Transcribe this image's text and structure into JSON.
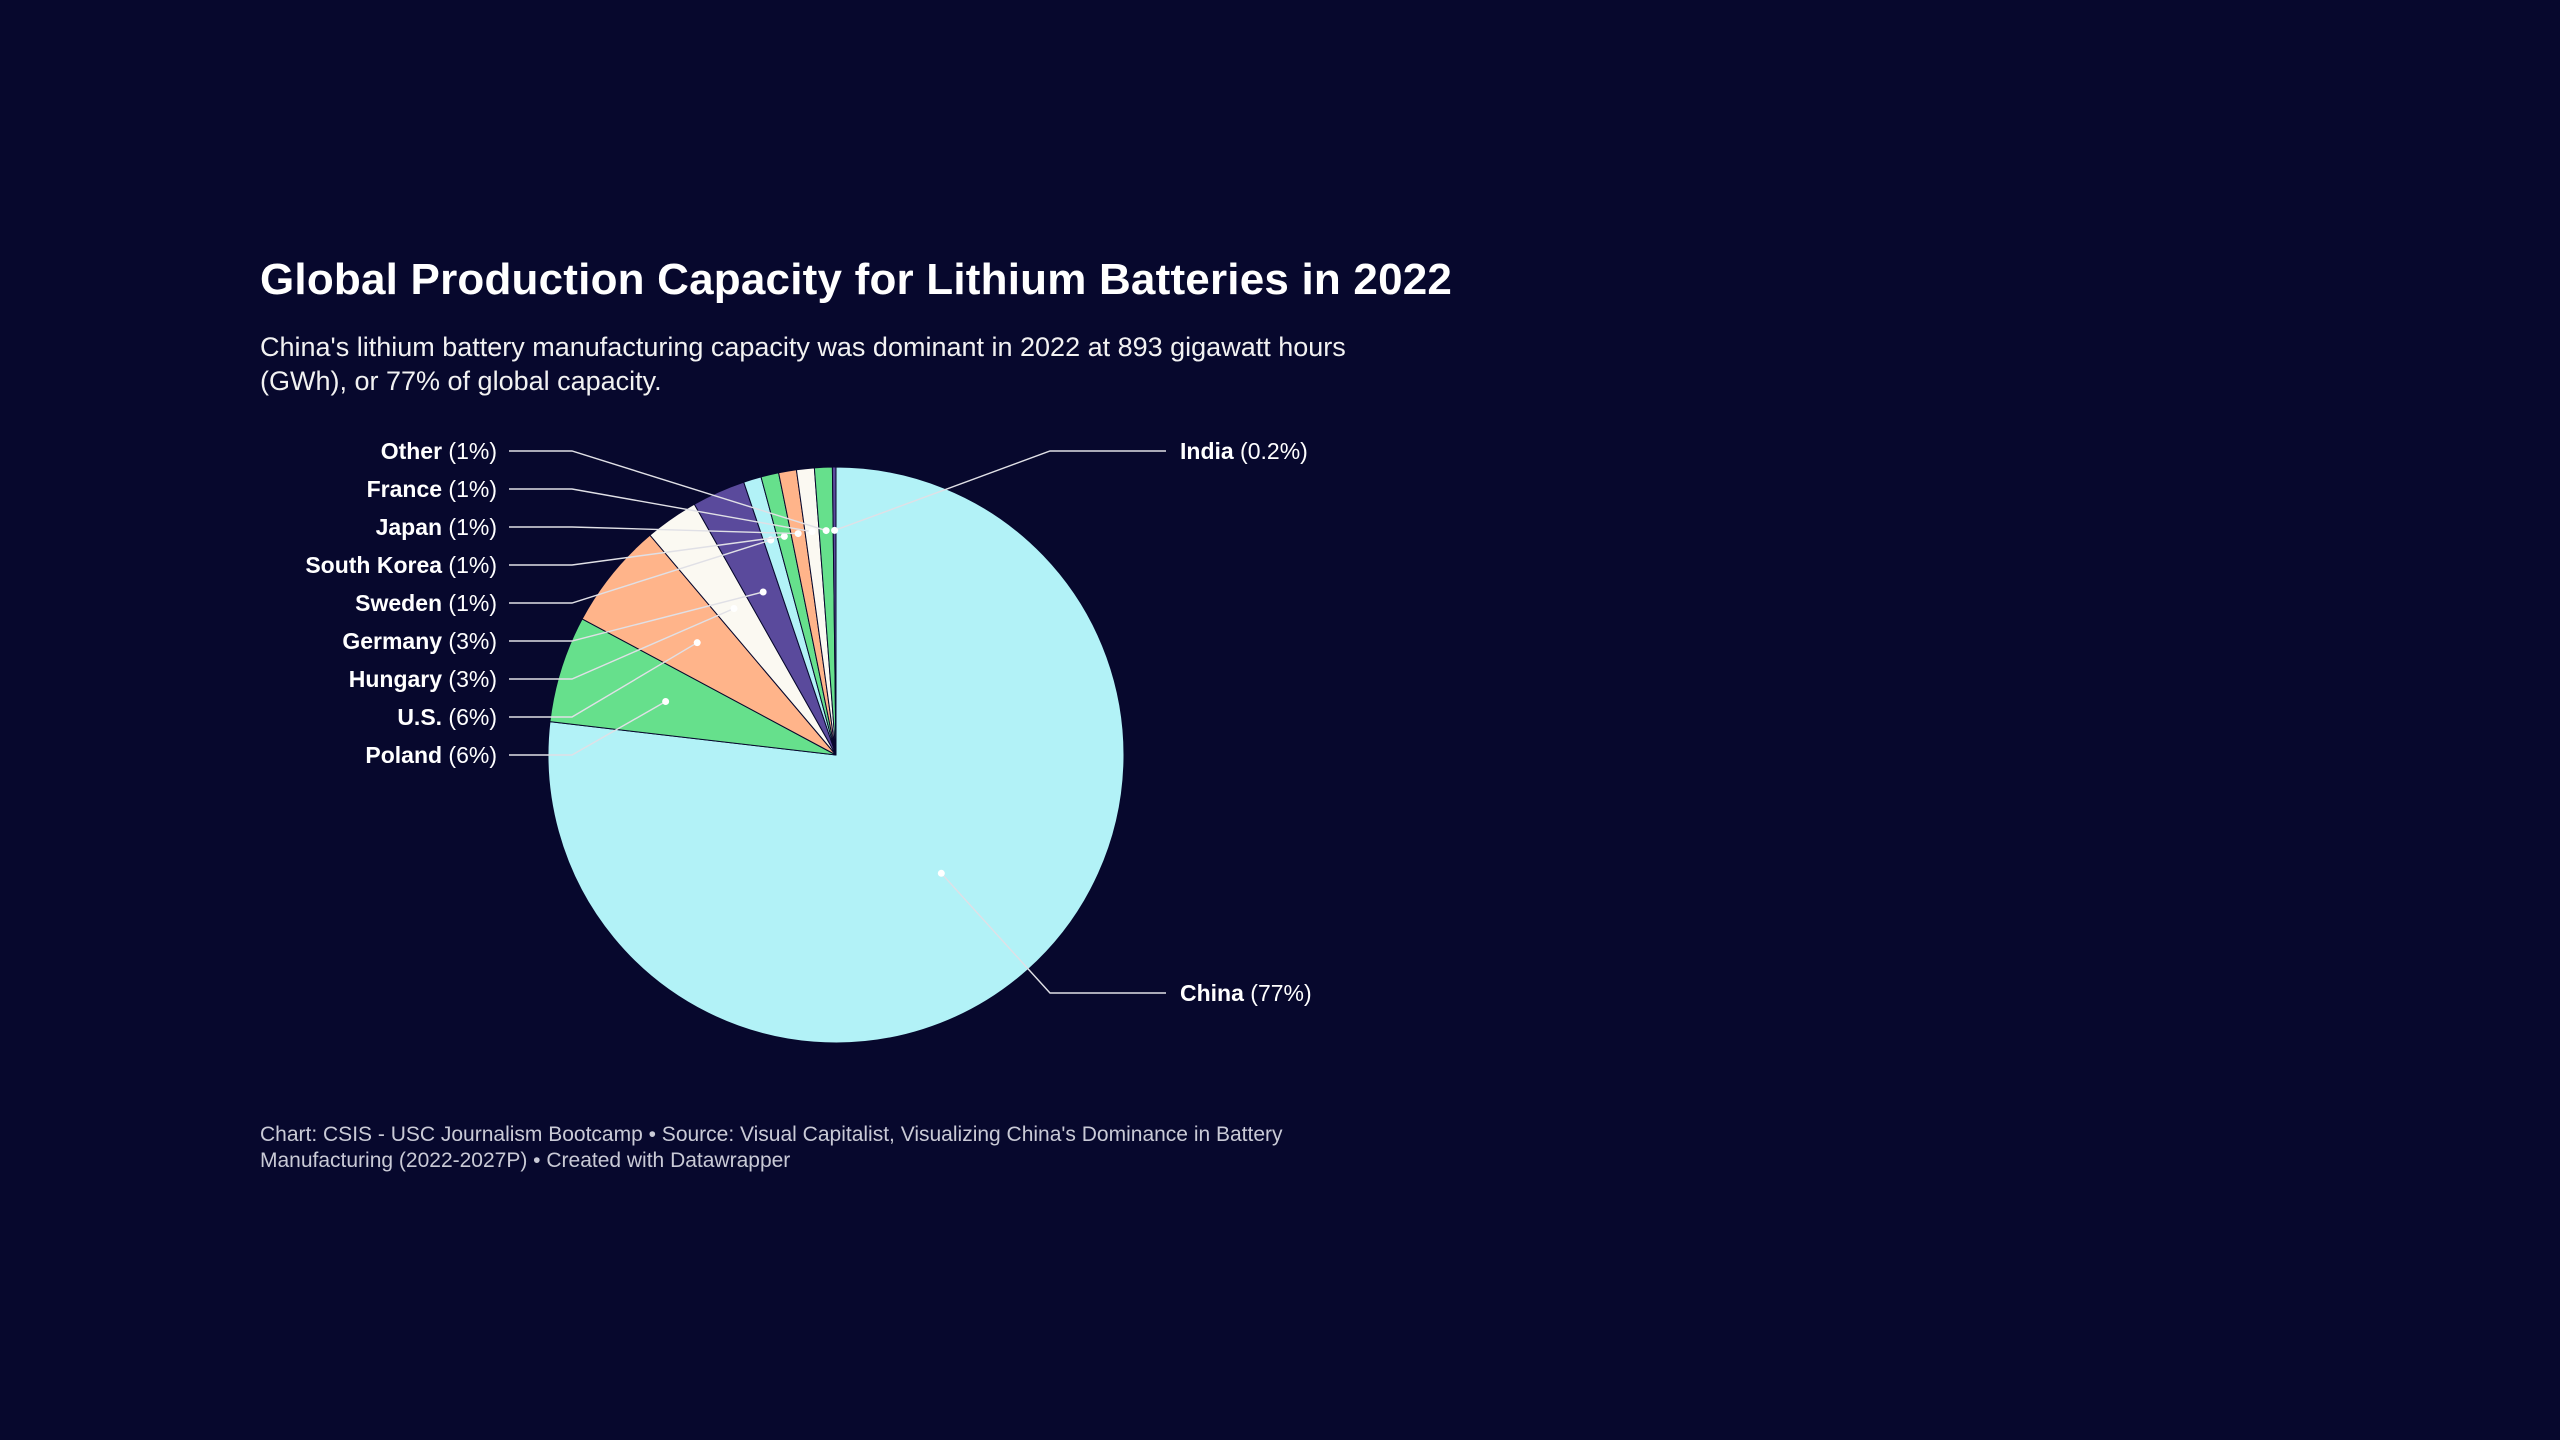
{
  "colors": {
    "background": "#07082d",
    "text": "#ffffff",
    "leader": "#e0e0e6"
  },
  "chart_data": {
    "type": "pie",
    "title": "Global Production Capacity for Lithium Batteries in 2022",
    "subtitle": "China's lithium battery manufacturing capacity was dominant in 2022 at 893 gigawatt hours (GWh), or 77% of global capacity.",
    "footer": "Chart: CSIS - USC Journalism Bootcamp • Source: Visual Capitalist, Visualizing China's Dominance in Battery Manufacturing (2022-2027P) • Created with Datawrapper",
    "slices": [
      {
        "name": "China",
        "pct": "(77%)",
        "value": 77,
        "color": "#b2f2f7"
      },
      {
        "name": "Poland",
        "pct": "(6%)",
        "value": 6,
        "color": "#66e08c"
      },
      {
        "name": "U.S.",
        "pct": "(6%)",
        "value": 6,
        "color": "#ffb48a"
      },
      {
        "name": "Hungary",
        "pct": "(3%)",
        "value": 3,
        "color": "#fbf9f2"
      },
      {
        "name": "Germany",
        "pct": "(3%)",
        "value": 3,
        "color": "#5a4a9c"
      },
      {
        "name": "Sweden",
        "pct": "(1%)",
        "value": 1,
        "color": "#b2f2f7"
      },
      {
        "name": "South Korea",
        "pct": "(1%)",
        "value": 1,
        "color": "#66e08c"
      },
      {
        "name": "Japan",
        "pct": "(1%)",
        "value": 1,
        "color": "#ffb48a"
      },
      {
        "name": "France",
        "pct": "(1%)",
        "value": 1,
        "color": "#fbf9f2"
      },
      {
        "name": "Other",
        "pct": "(1%)",
        "value": 1,
        "color": "#66e08c"
      },
      {
        "name": "India",
        "pct": "(0.2%)",
        "value": 0.2,
        "color": "#5a4a9c"
      }
    ]
  }
}
